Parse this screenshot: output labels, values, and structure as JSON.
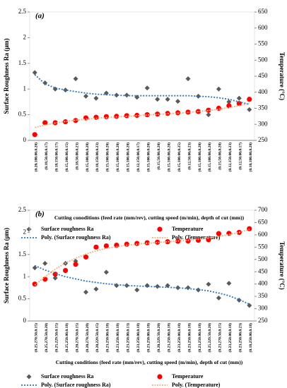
{
  "chart_data": [
    {
      "type": "line",
      "title": "(a)",
      "x_label": "Cutting conoditions (feed rate (mm/rev), cutting speed (m/min), depth of cut (mm))",
      "y_label": "Surface Roughness Ra (μm)",
      "y2_label": "Temperature (°C)",
      "categories": [
        "(0.20,100.00,0.20)",
        "(0.18,50.00,0.17)",
        "(0.18,150.00,0.17)",
        "(0.15,100.00,0.15)",
        "(0.18,50.00,0.23)",
        "(0.15,100.00,0.20)",
        "(0.18,150.00,0.23)",
        "(0.15,100.00,0.20)",
        "(0.15,100.00,0.20)",
        "(0.15,100.00,0.20)",
        "(0.12,150.00,0.17)",
        "(0.15,100.00,0.20)",
        "(0.15,50.00,0.20)",
        "(0.15,100.00,0.20)",
        "(0.15,100.00,0.25)",
        "(0.12,50.00,0.23)",
        "(0.15,100.00,0.20)",
        "(0.15,100.00,0.20)",
        "(0.15,50.00,0.20)",
        "(0.12,150.00,0.23)",
        "(0.12,50.00,0.17)",
        "(0.10,100.00,0.20)"
      ],
      "ylim": [
        0,
        2.5
      ],
      "yticks": [
        0,
        0.5,
        1,
        1.5,
        2,
        2.5
      ],
      "y2lim": [
        250,
        650
      ],
      "y2ticks": [
        250,
        300,
        350,
        400,
        450,
        500,
        550,
        600,
        650
      ],
      "series": [
        {
          "name": "Surface roughness Ra",
          "color": "#595959",
          "marker": "diamond",
          "values": [
            1.32,
            1.12,
            1.0,
            0.98,
            1.2,
            0.86,
            0.82,
            0.92,
            0.88,
            0.88,
            0.84,
            1.02,
            0.8,
            0.8,
            0.76,
            1.2,
            0.86,
            0.5,
            1.0,
            0.75,
            0.82,
            0.6
          ]
        },
        {
          "name": "Temperature",
          "color": "#ff0000",
          "marker": "circle",
          "axis": "y2",
          "values": [
            268,
            305,
            305,
            308,
            312,
            320,
            322,
            324,
            325,
            327,
            328,
            330,
            332,
            334,
            336,
            338,
            340,
            344,
            350,
            358,
            365,
            378
          ]
        },
        {
          "name": "Poly. (Surface roughness Ra)",
          "color": "#2e75b6",
          "marker": "none",
          "dash": "2,2",
          "values": [
            1.28,
            1.1,
            1.02,
            0.98,
            0.95,
            0.92,
            0.9,
            0.89,
            0.88,
            0.87,
            0.87,
            0.87,
            0.87,
            0.87,
            0.87,
            0.87,
            0.86,
            0.85,
            0.83,
            0.8,
            0.75,
            0.7
          ]
        },
        {
          "name": "Poly. (Temperature)",
          "color": "#f4b183",
          "marker": "none",
          "dash": "2,1.5",
          "axis": "y2",
          "values": [
            290,
            298,
            304,
            309,
            313,
            316,
            319,
            321,
            323,
            325,
            327,
            329,
            331,
            333,
            335,
            337,
            340,
            343,
            347,
            352,
            358,
            366
          ]
        }
      ]
    },
    {
      "type": "line",
      "title": "(b)",
      "x_label": "Cutting conditions (feed rate (mm/rev), cutting speed (m/min), depth of cut (mm))",
      "y_label": "Surface Roughness Ra (μm)",
      "y2_label": "Temperature (°C)",
      "categories": [
        "(0.25,270.50,0.15)",
        "(0.25,270.50,0.20)",
        "(0.25,229.50,0.15)",
        "(0.25,250.00,0.18)",
        "(0.20,270.50,0.15)",
        "(0.20,270.50,0.20)",
        "(0.20,229.50,0.15)",
        "(0.23,250.00,0.18)",
        "(0.23,250.00,0.18)",
        "(0.23,250.00,0.13)",
        "(0.23,250.00,0.18)",
        "(0.23,250.00,0.18)",
        "(0.20,229.50,0.20)",
        "(0.23,250.00,0.18)",
        "(0.23,250.00,0.18)",
        "(0.23,250.00,0.18)",
        "(0.23,250.00,0.18)",
        "(0.25,229.50,0.20)",
        "(0.23,270.50,0.15)",
        "(0.23,250.00,0.18)",
        "(0.23,250.00,0.23)",
        "(0.18,250.00,0.18)"
      ],
      "ylim": [
        0,
        2.5
      ],
      "yticks": [
        0,
        0.5,
        1,
        1.5,
        2,
        2.5
      ],
      "y2lim": [
        250,
        700
      ],
      "y2ticks": [
        250,
        300,
        350,
        400,
        450,
        500,
        550,
        600,
        650,
        700
      ],
      "series": [
        {
          "name": "Surface roughness Ra",
          "color": "#595959",
          "marker": "diamond",
          "values": [
            1.2,
            1.3,
            0.97,
            1.3,
            1.35,
            0.65,
            0.72,
            1.1,
            0.8,
            0.8,
            0.7,
            0.8,
            0.78,
            0.8,
            0.75,
            0.75,
            0.7,
            0.83,
            0.52,
            0.85,
            0.47,
            0.35
          ]
        },
        {
          "name": "Temperature",
          "color": "#ff0000",
          "marker": "circle",
          "axis": "y2",
          "values": [
            400,
            420,
            440,
            455,
            480,
            510,
            550,
            555,
            558,
            562,
            565,
            568,
            570,
            572,
            574,
            575,
            578,
            580,
            605,
            606,
            610,
            625
          ]
        },
        {
          "name": "Poly. (Surface roughness Ra)",
          "color": "#2e75b6",
          "marker": "none",
          "dash": "2,2",
          "values": [
            1.25,
            1.15,
            1.07,
            1.0,
            0.95,
            0.9,
            0.87,
            0.84,
            0.82,
            0.8,
            0.79,
            0.78,
            0.77,
            0.76,
            0.75,
            0.73,
            0.71,
            0.68,
            0.63,
            0.57,
            0.48,
            0.38
          ]
        },
        {
          "name": "Poly. (Temperature)",
          "color": "#f4b183",
          "marker": "none",
          "dash": "2,1.5",
          "axis": "y2",
          "values": [
            395,
            430,
            460,
            485,
            505,
            522,
            535,
            545,
            552,
            558,
            562,
            566,
            569,
            572,
            575,
            578,
            582,
            587,
            593,
            601,
            610,
            622
          ]
        }
      ]
    }
  ]
}
